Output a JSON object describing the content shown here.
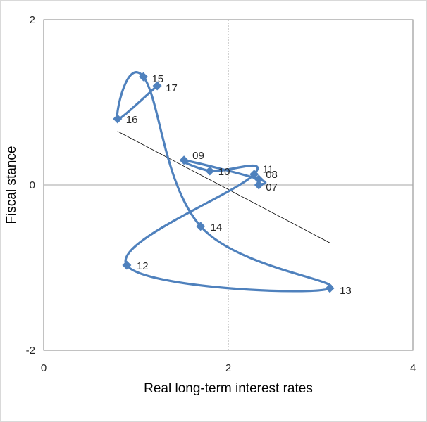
{
  "chart_data": {
    "type": "scatter",
    "xlabel": "Real long-term interest rates",
    "ylabel": "Fiscal stance",
    "xlim": [
      0,
      4
    ],
    "ylim": [
      -2,
      2
    ],
    "x_ticks": [
      "0",
      "2",
      "4"
    ],
    "y_ticks": [
      "2",
      "0",
      "-2"
    ],
    "grid": false,
    "legend": "none",
    "series_color": "#4f81bd",
    "points": [
      {
        "label": "07",
        "x": 2.33,
        "y": 0.0
      },
      {
        "label": "08",
        "x": 2.33,
        "y": 0.07
      },
      {
        "label": "09",
        "x": 1.52,
        "y": 0.3
      },
      {
        "label": "10",
        "x": 1.8,
        "y": 0.17
      },
      {
        "label": "11",
        "x": 2.28,
        "y": 0.13
      },
      {
        "label": "12",
        "x": 0.9,
        "y": -0.97
      },
      {
        "label": "13",
        "x": 3.1,
        "y": -1.25
      },
      {
        "label": "14",
        "x": 1.7,
        "y": -0.5
      },
      {
        "label": "15",
        "x": 1.08,
        "y": 1.31
      },
      {
        "label": "16",
        "x": 0.8,
        "y": 0.8
      },
      {
        "label": "17",
        "x": 1.23,
        "y": 1.2
      }
    ],
    "trend_line": {
      "x": [
        0.8,
        3.1
      ],
      "y": [
        0.65,
        -0.7
      ],
      "color": "#000000"
    }
  }
}
